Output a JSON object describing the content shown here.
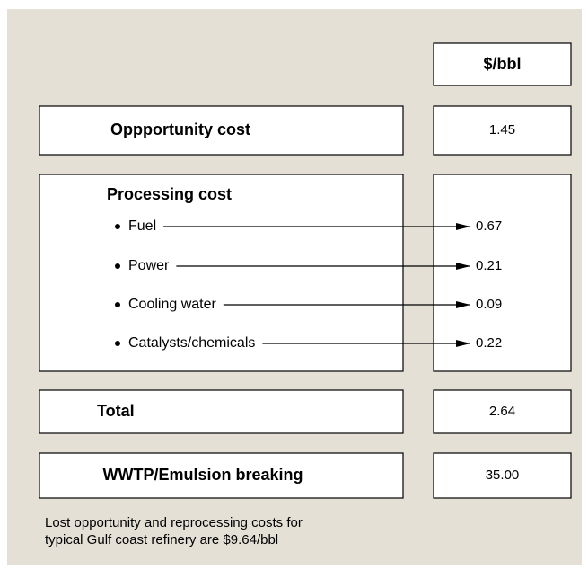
{
  "header": {
    "unit": "$/bbl"
  },
  "rows": {
    "opportunity": {
      "label": "Oppportunity cost",
      "value": "1.45"
    },
    "processing": {
      "label": "Processing cost",
      "items": [
        {
          "label": "Fuel",
          "value": "0.67"
        },
        {
          "label": "Power",
          "value": "0.21"
        },
        {
          "label": "Cooling water",
          "value": "0.09"
        },
        {
          "label": "Catalysts/chemicals",
          "value": "0.22"
        }
      ]
    },
    "total": {
      "label": "Total",
      "value": "2.64"
    },
    "wwtp": {
      "label": "WWTP/Emulsion breaking",
      "value": "35.00"
    }
  },
  "footnote": [
    "Lost opportunity and reprocessing costs for",
    "typical Gulf coast refinery are $9.64/bbl"
  ]
}
